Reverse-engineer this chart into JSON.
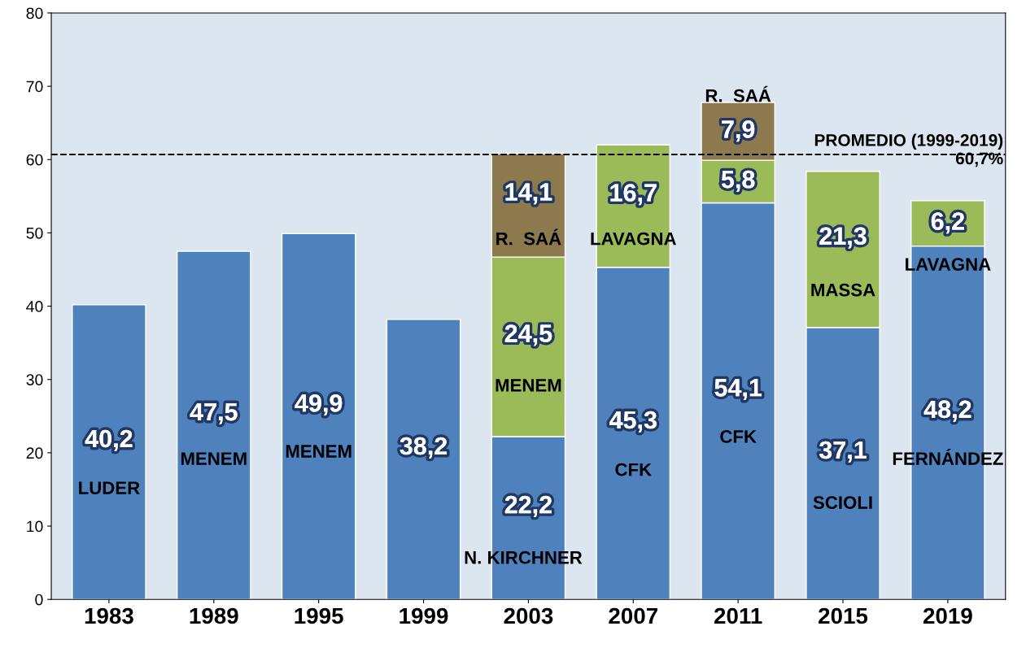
{
  "chart_data": {
    "type": "bar",
    "stacked": true,
    "categories": [
      "1983",
      "1989",
      "1995",
      "1999",
      "2003",
      "2007",
      "2011",
      "2015",
      "2019"
    ],
    "series": [
      {
        "color": "#4f81bd",
        "values": [
          40.2,
          47.5,
          49.9,
          38.2,
          22.2,
          45.3,
          54.1,
          37.1,
          48.2
        ],
        "value_labels": [
          "40,2",
          "47,5",
          "49,9",
          "38,2",
          "22,2",
          "45,3",
          "54,1",
          "37,1",
          "48,2"
        ]
      },
      {
        "color": "#9bbb59",
        "values": [
          null,
          null,
          null,
          null,
          24.5,
          16.7,
          5.8,
          21.3,
          6.2
        ],
        "value_labels": [
          null,
          null,
          null,
          null,
          "24,5",
          "16,7",
          "5,8",
          "21,3",
          "6,2"
        ]
      },
      {
        "color": "#8c7a4e",
        "values": [
          null,
          null,
          null,
          null,
          14.1,
          null,
          7.9,
          null,
          null
        ],
        "value_labels": [
          null,
          null,
          null,
          null,
          "14,1",
          null,
          "7,9",
          null,
          null
        ]
      }
    ],
    "ylim": [
      0,
      80
    ],
    "yticks": [
      0,
      10,
      20,
      30,
      40,
      50,
      60,
      70,
      80
    ],
    "grid": false,
    "legend": false,
    "ref_lines": [
      {
        "axis": "y",
        "value": 60.7,
        "label": "PROMEDIO (1999-2019)\n60,7%",
        "color": "#000000",
        "line_style": "dashed"
      }
    ],
    "annotations": [
      "LUDER",
      "MENEM",
      "MENEM",
      "N. KIRCHNER",
      "MENEM",
      "R.  SAÁ",
      "LAVAGNA",
      "CFK",
      "CFK",
      "R.  SAÁ",
      "SCIOLI",
      "MASSA",
      "FERNÁNDEZ",
      "LAVAGNA"
    ]
  }
}
